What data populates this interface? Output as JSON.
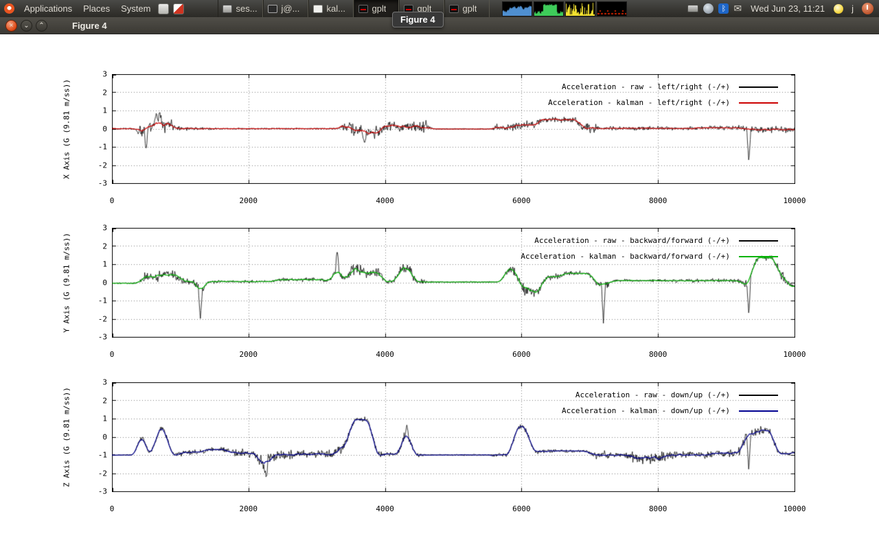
{
  "panel": {
    "menus": [
      {
        "label": "Applications"
      },
      {
        "label": "Places"
      },
      {
        "label": "System"
      }
    ],
    "taskbar": [
      {
        "label": "ses...",
        "active": false
      },
      {
        "label": "j@...",
        "active": false
      },
      {
        "label": "kal...",
        "active": false
      },
      {
        "label": "gplt",
        "active": true
      },
      {
        "label": "gplt",
        "active": false
      },
      {
        "label": "gplt",
        "active": false
      }
    ],
    "monitor_graphs": [
      {
        "name": "processor-load-graph",
        "color": "#4f8fd0",
        "style": "wave"
      },
      {
        "name": "memory-load-graph",
        "color": "#3ecc5a",
        "style": "blocks"
      },
      {
        "name": "network-load-graph",
        "color": "#f2e130",
        "style": "spikes"
      },
      {
        "name": "swap-load-graph",
        "color": "#cc2200",
        "style": "dashes"
      }
    ],
    "clock": "Wed Jun 23, 11:21",
    "username": "j",
    "bluetooth_glyph": "ᛒ",
    "mail_glyph": "✉"
  },
  "tooltip": {
    "text": "Figure 4"
  },
  "window": {
    "title": "Figure 4",
    "close_glyph": "×",
    "min_glyph": "⌄",
    "max_glyph": "⌃"
  },
  "chart_data": [
    {
      "type": "line",
      "ylabel": "X Axis (G (9.81 m/ss))",
      "xlabel": "",
      "xlim": [
        0,
        10000
      ],
      "ylim": [
        -3,
        3
      ],
      "xticks": [
        0,
        2000,
        4000,
        6000,
        8000,
        10000
      ],
      "yticks": [
        -3,
        -2,
        -1,
        0,
        1,
        2,
        3
      ],
      "grid": true,
      "legend_position": "top-right",
      "series": [
        {
          "name": "Acceleration - raw - left/right (-/+)",
          "color": "#000000",
          "role": "raw"
        },
        {
          "name": "Acceleration - kalman - left/right (-/+)",
          "color": "#cc0000",
          "role": "kalman"
        }
      ],
      "seed": 11,
      "signal": {
        "segments": [
          [
            0,
            380,
            0,
            0.04
          ],
          [
            380,
            520,
            -0.15,
            0.35
          ],
          [
            520,
            900,
            0.25,
            0.35
          ],
          [
            900,
            1100,
            0,
            0.12
          ],
          [
            1100,
            1500,
            0,
            0.08
          ],
          [
            1500,
            3350,
            0,
            0.04
          ],
          [
            3350,
            3500,
            0.15,
            0.3
          ],
          [
            3500,
            3700,
            -0.1,
            0.3
          ],
          [
            3700,
            3950,
            -0.2,
            0.3
          ],
          [
            3950,
            4200,
            0.15,
            0.25
          ],
          [
            4200,
            4650,
            0.1,
            0.3
          ],
          [
            4650,
            5600,
            -0.02,
            0.03
          ],
          [
            5600,
            5900,
            0.05,
            0.18
          ],
          [
            5900,
            6250,
            0.2,
            0.18
          ],
          [
            6250,
            6850,
            0.5,
            0.15
          ],
          [
            6850,
            7100,
            0.05,
            0.25
          ],
          [
            7100,
            8600,
            0.02,
            0.1
          ],
          [
            8600,
            9250,
            0.05,
            0.12
          ],
          [
            9250,
            10000,
            -0.05,
            0.18
          ]
        ],
        "spikes": [
          [
            500,
            -1.2
          ],
          [
            650,
            0.9
          ],
          [
            700,
            1.0
          ],
          [
            3700,
            -0.85
          ],
          [
            9330,
            -1.85
          ]
        ]
      }
    },
    {
      "type": "line",
      "ylabel": "Y Axis (G (9.81 m/ss))",
      "xlabel": "",
      "xlim": [
        0,
        10000
      ],
      "ylim": [
        -3,
        3
      ],
      "xticks": [
        0,
        2000,
        4000,
        6000,
        8000,
        10000
      ],
      "yticks": [
        -3,
        -2,
        -1,
        0,
        1,
        2,
        3
      ],
      "grid": true,
      "legend_position": "top-right",
      "series": [
        {
          "name": "Acceleration - raw - backward/forward (-/+)",
          "color": "#000000",
          "role": "raw"
        },
        {
          "name": "Acceleration - kalman - backward/forward (-/+)",
          "color": "#00b400",
          "role": "kalman"
        }
      ],
      "seed": 23,
      "signal": {
        "segments": [
          [
            0,
            430,
            -0.05,
            0.04
          ],
          [
            430,
            700,
            0.3,
            0.25
          ],
          [
            700,
            1000,
            0.45,
            0.25
          ],
          [
            1000,
            1250,
            0.05,
            0.2
          ],
          [
            1250,
            1340,
            -0.6,
            0.3
          ],
          [
            1340,
            1600,
            0.05,
            0.1
          ],
          [
            1600,
            2400,
            0.05,
            0.07
          ],
          [
            2400,
            3100,
            0.15,
            0.1
          ],
          [
            3100,
            3260,
            0.1,
            0.1
          ],
          [
            3260,
            3340,
            0.9,
            0.4
          ],
          [
            3340,
            3480,
            0.15,
            0.15
          ],
          [
            3480,
            3650,
            0.8,
            0.3
          ],
          [
            3650,
            3800,
            0.5,
            0.35
          ],
          [
            3800,
            3950,
            0.6,
            0.3
          ],
          [
            3950,
            4200,
            0.05,
            0.12
          ],
          [
            4200,
            4400,
            0.8,
            0.3
          ],
          [
            4400,
            4600,
            0.05,
            0.15
          ],
          [
            4600,
            5750,
            0.02,
            0.04
          ],
          [
            5750,
            5950,
            0.75,
            0.2
          ],
          [
            5950,
            6150,
            -0.35,
            0.35
          ],
          [
            6150,
            6300,
            -0.55,
            0.25
          ],
          [
            6300,
            6600,
            0.3,
            0.15
          ],
          [
            6600,
            7050,
            0.5,
            0.12
          ],
          [
            7050,
            7300,
            -0.1,
            0.2
          ],
          [
            7300,
            8200,
            0.1,
            0.08
          ],
          [
            8200,
            9200,
            0.1,
            0.1
          ],
          [
            9200,
            9380,
            -0.1,
            0.2
          ],
          [
            9380,
            9750,
            1.35,
            0.12
          ],
          [
            9750,
            9900,
            0.3,
            0.3
          ],
          [
            9900,
            10000,
            -0.3,
            0.15
          ]
        ],
        "spikes": [
          [
            1295,
            -2.05
          ],
          [
            3300,
            1.8
          ],
          [
            7200,
            -2.25
          ],
          [
            9330,
            -1.8
          ]
        ]
      }
    },
    {
      "type": "line",
      "ylabel": "Z Axis (G (9.81 m/ss))",
      "xlabel": "",
      "xlim": [
        0,
        10000
      ],
      "ylim": [
        -3,
        3
      ],
      "xticks": [
        0,
        2000,
        4000,
        6000,
        8000,
        10000
      ],
      "yticks": [
        -3,
        -2,
        -1,
        0,
        1,
        2,
        3
      ],
      "grid": true,
      "legend_position": "top-right",
      "series": [
        {
          "name": "Acceleration - raw - down/up (-/+)",
          "color": "#000000",
          "role": "raw"
        },
        {
          "name": "Acceleration - kalman - down/up (-/+)",
          "color": "#000090",
          "role": "kalman"
        }
      ],
      "seed": 37,
      "signal": {
        "segments": [
          [
            0,
            390,
            -1,
            0.03
          ],
          [
            390,
            480,
            0.35,
            0.2
          ],
          [
            480,
            560,
            -0.9,
            0.15
          ],
          [
            560,
            640,
            -1,
            0.1
          ],
          [
            640,
            820,
            0.5,
            0.15
          ],
          [
            820,
            1000,
            -1,
            0.1
          ],
          [
            1000,
            1350,
            -0.85,
            0.15
          ],
          [
            1350,
            1700,
            -0.7,
            0.15
          ],
          [
            1700,
            2150,
            -0.9,
            0.2
          ],
          [
            2150,
            2320,
            -1.5,
            0.35
          ],
          [
            2320,
            2700,
            -1,
            0.25
          ],
          [
            2700,
            3300,
            -0.95,
            0.2
          ],
          [
            3300,
            3480,
            -0.6,
            0.25
          ],
          [
            3480,
            3820,
            0.95,
            0.12
          ],
          [
            3820,
            4000,
            -1,
            0.15
          ],
          [
            4000,
            4250,
            -0.95,
            0.1
          ],
          [
            4250,
            4380,
            0.3,
            0.3
          ],
          [
            4380,
            4550,
            -1,
            0.1
          ],
          [
            4550,
            5550,
            -1,
            0.04
          ],
          [
            5550,
            5880,
            -1,
            0.12
          ],
          [
            5880,
            6120,
            0.55,
            0.18
          ],
          [
            6120,
            6400,
            -0.8,
            0.1
          ],
          [
            6400,
            7000,
            -0.78,
            0.08
          ],
          [
            7000,
            7600,
            -1,
            0.18
          ],
          [
            7600,
            8100,
            -1.15,
            0.3
          ],
          [
            8100,
            8800,
            -1,
            0.2
          ],
          [
            8800,
            9250,
            -0.9,
            0.18
          ],
          [
            9250,
            9450,
            0.2,
            0.25
          ],
          [
            9450,
            9700,
            0.35,
            0.2
          ],
          [
            9700,
            9850,
            -0.9,
            0.15
          ],
          [
            9850,
            10000,
            -0.95,
            0.08
          ]
        ],
        "spikes": [
          [
            2260,
            -2.3
          ],
          [
            4320,
            0.65
          ],
          [
            9330,
            -1.9
          ]
        ]
      }
    }
  ]
}
